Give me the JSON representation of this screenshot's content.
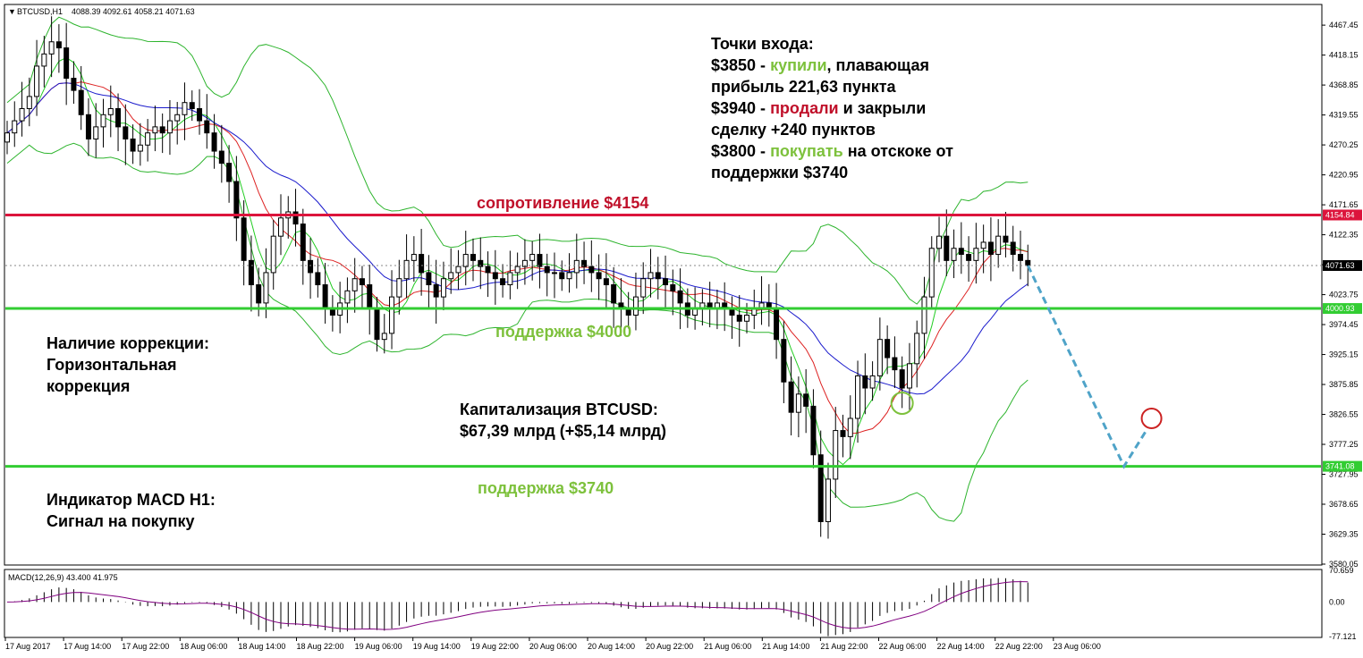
{
  "window": {
    "title": "BTCUSD,H1",
    "ohlc": "4088.39 4092.61 4058.21 4071.63"
  },
  "annotations": {
    "entry_points": {
      "title": "Точки входа:",
      "line1_price": "$3850 - ",
      "line1_action": "купили",
      "line1_rest": ", плавающая",
      "line2": "прибыль 221,63 пункта",
      "line3_price": "$3940 - ",
      "line3_action": "продали",
      "line3_rest": " и закрыли",
      "line4": "сделку +240 пунктов",
      "line5_price": "$3800 - ",
      "line5_action": "покупать",
      "line5_rest": " на отскоке от",
      "line6": "поддержки $3740"
    },
    "correction": {
      "line1": "Наличие коррекции:",
      "line2": "Горизонтальная",
      "line3": "коррекция"
    },
    "capitalization": {
      "line1": "Капитализация BTCUSD:",
      "line2": "$67,39 млрд (+$5,14 млрд)"
    },
    "macd_signal": {
      "line1": "Индикатор MACD H1:",
      "line2": "Сигнал на покупку"
    },
    "resistance_label": "сопротивление $4154",
    "support1_label": "поддержка $4000",
    "support2_label": "поддержка $3740"
  },
  "colors": {
    "resistance": "#dc143c",
    "support": "#32cd32",
    "green_text": "#7dc13c",
    "red_text": "#c0102a",
    "projection": "#4fa3c8",
    "bollinger": "#2db42d",
    "ma_fast": "#22cc22",
    "ma_mid": "#dd2222",
    "ma_slow": "#1a1acc",
    "macd_signal": "#800080"
  },
  "chart_data": {
    "type": "candlestick",
    "symbol": "BTCUSD",
    "timeframe": "H1",
    "y_ticks": [
      "4467.45",
      "4418.15",
      "4368.85",
      "4319.55",
      "4270.25",
      "4220.95",
      "4171.65",
      "4122.35",
      "4073.05",
      "4023.75",
      "3974.45",
      "3925.15",
      "3875.85",
      "3826.55",
      "3777.25",
      "3727.95",
      "3678.65",
      "3629.35",
      "3580.05"
    ],
    "ylim": [
      3580.05,
      4500.0
    ],
    "x_labels": [
      "17 Aug 2017",
      "17 Aug 14:00",
      "17 Aug 22:00",
      "18 Aug 06:00",
      "18 Aug 14:00",
      "18 Aug 22:00",
      "19 Aug 06:00",
      "19 Aug 14:00",
      "19 Aug 22:00",
      "20 Aug 06:00",
      "20 Aug 14:00",
      "20 Aug 22:00",
      "21 Aug 06:00",
      "21 Aug 14:00",
      "21 Aug 22:00",
      "22 Aug 06:00",
      "22 Aug 14:00",
      "22 Aug 22:00",
      "23 Aug 06:00"
    ],
    "price_markers": [
      {
        "label": "4154.84",
        "value": 4154.84,
        "kind": "resistance"
      },
      {
        "label": "4071.63",
        "value": 4071.63,
        "kind": "current"
      },
      {
        "label": "4000.93",
        "value": 4000.93,
        "kind": "support"
      },
      {
        "label": "3741.08",
        "value": 3741.08,
        "kind": "support"
      }
    ],
    "levels": {
      "resistance": 4154.84,
      "support1": 4000.93,
      "support2": 3741.08
    },
    "candles_close": [
      4290,
      4310,
      4330,
      4350,
      4400,
      4420,
      4440,
      4430,
      4380,
      4360,
      4320,
      4280,
      4300,
      4320,
      4330,
      4300,
      4280,
      4260,
      4270,
      4290,
      4300,
      4290,
      4310,
      4320,
      4340,
      4330,
      4310,
      4290,
      4260,
      4240,
      4210,
      4150,
      4080,
      4040,
      4010,
      4060,
      4120,
      4150,
      4160,
      4140,
      4080,
      4060,
      4040,
      4000,
      3990,
      4010,
      4030,
      4050,
      4040,
      4000,
      3950,
      3960,
      4020,
      4050,
      4080,
      4090,
      4060,
      4040,
      4020,
      4050,
      4060,
      4070,
      4090,
      4080,
      4070,
      4060,
      4050,
      4040,
      4060,
      4070,
      4080,
      4090,
      4070,
      4060,
      4060,
      4050,
      4060,
      4080,
      4070,
      4060,
      4050,
      4040,
      4010,
      4000,
      3990,
      4020,
      4050,
      4060,
      4050,
      4040,
      4030,
      4010,
      3990,
      4000,
      4010,
      4000,
      4010,
      4000,
      3990,
      3980,
      3990,
      4000,
      4010,
      4000,
      3950,
      3880,
      3830,
      3860,
      3840,
      3760,
      3650,
      3720,
      3800,
      3790,
      3820,
      3890,
      3870,
      3890,
      3950,
      3920,
      3900,
      3870,
      3910,
      3960,
      4020,
      4100,
      4120,
      4080,
      4100,
      4090,
      4080,
      4100,
      4110,
      4090,
      4120,
      4110,
      4090,
      4080,
      4071.63
    ],
    "projection": [
      {
        "date_index": 138,
        "value": 4071.63
      },
      {
        "date_index": 151,
        "value": 3741.08
      },
      {
        "date_index": 154,
        "value": 3800.0
      }
    ],
    "macd": {
      "label": "MACD(12,26,9) 43.400 41.975",
      "y_ticks": [
        "70.659",
        "0.00",
        "-77.121"
      ],
      "ylim": [
        -77.121,
        70.659
      ]
    }
  }
}
